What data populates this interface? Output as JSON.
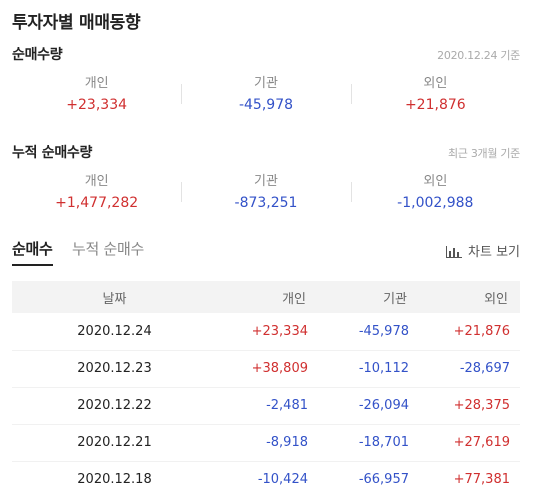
{
  "title": "투자자별 매매동향",
  "daily": {
    "title": "순매수량",
    "note": "2020.12.24 기준",
    "items": [
      {
        "label": "개인",
        "value": "+23,334"
      },
      {
        "label": "기관",
        "value": "-45,978"
      },
      {
        "label": "외인",
        "value": "+21,876"
      }
    ]
  },
  "cumulative": {
    "title": "누적 순매수량",
    "note": "최근 3개월 기준",
    "items": [
      {
        "label": "개인",
        "value": "+1,477,282"
      },
      {
        "label": "기관",
        "value": "-873,251"
      },
      {
        "label": "외인",
        "value": "-1,002,988"
      }
    ]
  },
  "tabs": [
    {
      "label": "순매수"
    },
    {
      "label": "누적 순매수"
    }
  ],
  "chart_button": {
    "label": "차트 보기",
    "icon": "bar-chart-icon"
  },
  "table": {
    "headers": [
      "날짜",
      "개인",
      "기관",
      "외인"
    ],
    "rows": [
      [
        "2020.12.24",
        "+23,334",
        "-45,978",
        "+21,876"
      ],
      [
        "2020.12.23",
        "+38,809",
        "-10,112",
        "-28,697"
      ],
      [
        "2020.12.22",
        "-2,481",
        "-26,094",
        "+28,375"
      ],
      [
        "2020.12.21",
        "-8,918",
        "-18,701",
        "+27,619"
      ],
      [
        "2020.12.18",
        "-10,424",
        "-66,957",
        "+77,381"
      ]
    ]
  },
  "colors": {
    "positive": "#d03030",
    "negative": "#3352c8"
  }
}
